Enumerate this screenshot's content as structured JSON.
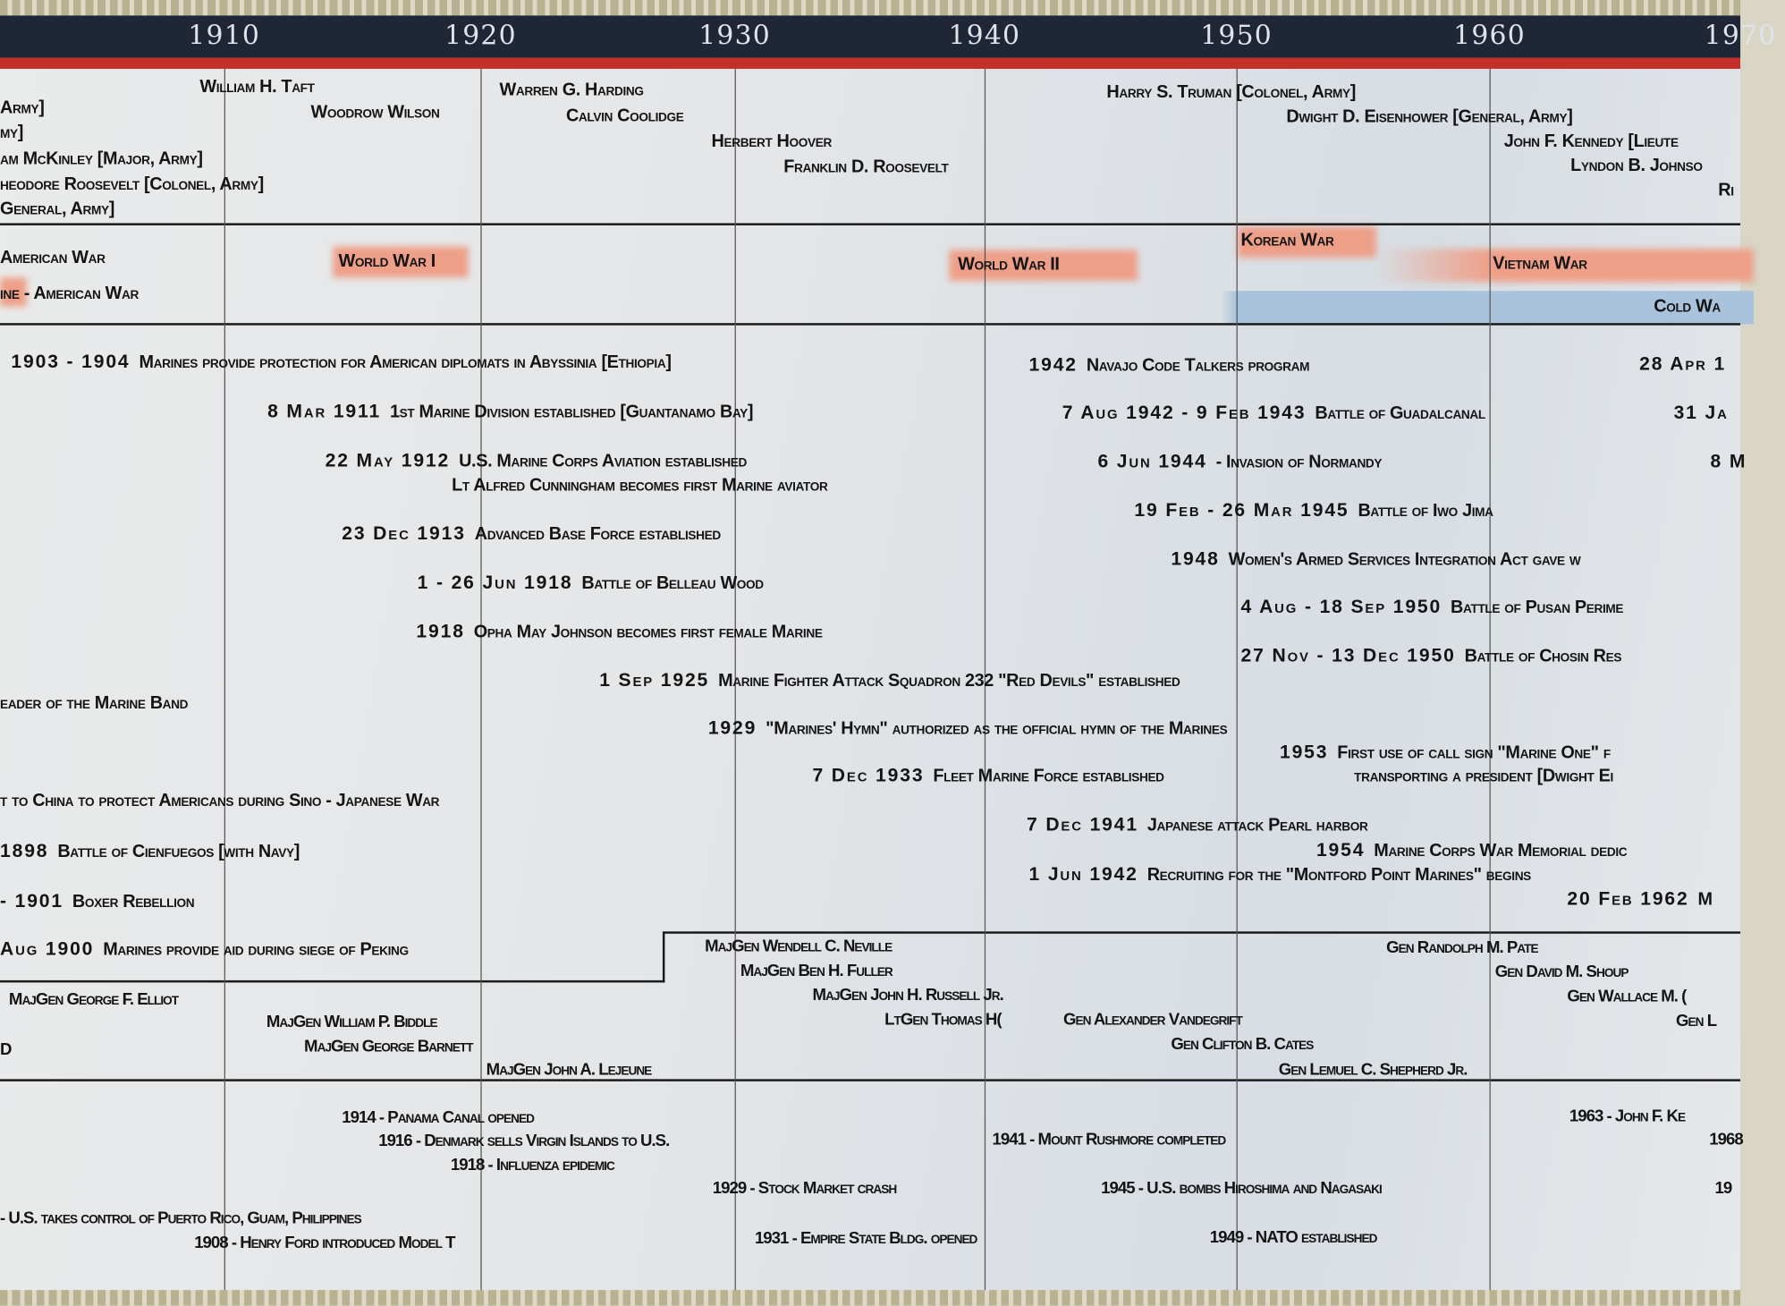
{
  "decades": [
    "1910",
    "1920",
    "1930",
    "1940",
    "1950",
    "1960",
    "1970"
  ],
  "colors": {
    "header": "#1f2636",
    "accent_red": "#c3302a",
    "war_band": "#ee9f88",
    "cold_war_band": "#a9c3dc",
    "star_border": "#b9b290"
  },
  "presidents": [
    "Army]",
    "my]",
    "am McKinley  [Major, Army]",
    "heodore Roosevelt  [Colonel, Army]",
    "General, Army]",
    "William H. Taft",
    "Woodrow Wilson",
    "Warren G. Harding",
    "Calvin Coolidge",
    "Herbert Hoover",
    "Franklin D. Roosevelt",
    "Harry S. Truman  [Colonel, Army]",
    "Dwight D. Eisenhower  [General, Army]",
    "John F. Kennedy  [Lieute",
    "Lyndon B. Johnso",
    "Ri"
  ],
  "wars": [
    "American War",
    "ine - American War",
    "World War I",
    "World War II",
    "Korean War",
    "Vietnam War",
    "Cold Wa"
  ],
  "events": [
    {
      "date": "1903 - 1904",
      "text": "Marines provide protection for American diplomats in Abyssinia [Ethiopia]"
    },
    {
      "date": "8 Mar 1911",
      "text": "1st Marine Division established [Guantanamo Bay]"
    },
    {
      "date": "22 May 1912",
      "text": "U.S. Marine Corps Aviation established"
    },
    {
      "date": "",
      "text": "Lt Alfred Cunningham becomes first Marine aviator"
    },
    {
      "date": "23 Dec 1913",
      "text": "Advanced Base Force established"
    },
    {
      "date": "1 - 26 Jun 1918",
      "text": "Battle of Belleau Wood"
    },
    {
      "date": "1918",
      "text": "Opha May Johnson becomes first female Marine"
    },
    {
      "date": "1 Sep 1925",
      "text": "Marine Fighter Attack Squadron 232 \"Red Devils\" established"
    },
    {
      "date": "",
      "text": "eader of the Marine Band"
    },
    {
      "date": "1929",
      "text": "\"Marines' Hymn\" authorized as the official hymn of the Marines"
    },
    {
      "date": "1953",
      "text": "First use of call sign \"Marine One\" f"
    },
    {
      "date": "",
      "text": "transporting a president  [Dwight Ei"
    },
    {
      "date": "7 Dec 1933",
      "text": "Fleet Marine Force established"
    },
    {
      "date": "",
      "text": "t to China to protect Americans during Sino - Japanese War"
    },
    {
      "date": "7 Dec 1941",
      "text": "Japanese attack Pearl harbor"
    },
    {
      "date": "1954",
      "text": "Marine Corps War Memorial dedic"
    },
    {
      "date": "1898",
      "text": "Battle of Cienfuegos [with Navy]"
    },
    {
      "date": "1 Jun 1942",
      "text": "Recruiting for the \"Montford Point Marines\" begins"
    },
    {
      "date": "20 Feb 1962",
      "text": "M"
    },
    {
      "date": "- 1901",
      "text": "Boxer Rebellion"
    },
    {
      "date": "Aug 1900",
      "text": "Marines provide aid during siege of Peking"
    },
    {
      "date": "1942",
      "text": "Navajo Code Talkers program"
    },
    {
      "date": "7 Aug 1942 - 9 Feb 1943",
      "text": "Battle of Guadalcanal"
    },
    {
      "date": "6 Jun 1944",
      "text": "- Invasion of Normandy"
    },
    {
      "date": "19 Feb - 26 Mar 1945",
      "text": "Battle of Iwo Jima"
    },
    {
      "date": "1948",
      "text": "Women's Armed Services Integration Act gave w"
    },
    {
      "date": "4 Aug - 18 Sep 1950",
      "text": "Battle of Pusan Perime"
    },
    {
      "date": "27 Nov - 13 Dec 1950",
      "text": "Battle of Chosin Res"
    },
    {
      "date": "28 Apr 1",
      "text": ""
    },
    {
      "date": "31 Ja",
      "text": ""
    },
    {
      "date": "8 M",
      "text": ""
    }
  ],
  "commandants": [
    "MajGen George F. Elliot",
    "D",
    "MajGen William P. Biddle",
    "MajGen George Barnett",
    "MajGen John A. Lejeune",
    "MajGen Wendell C. Neville",
    "MajGen Ben H. Fuller",
    "MajGen John H. Russell Jr.",
    "LtGen Thomas H(",
    "Gen Alexander Vandegrift",
    "Gen Clifton B. Cates",
    "Gen Lemuel C. Shepherd Jr.",
    "Gen Randolph M. Pate",
    "Gen David M. Shoup",
    "Gen Wallace M. (",
    "Gen L"
  ],
  "world_events": [
    "1914 - Panama Canal opened",
    "1916 - Denmark sells Virgin Islands to U.S.",
    "1918 - Influenza epidemic",
    "1929 - Stock Market crash",
    "- U.S. takes control of Puerto Rico, Guam, Philippines",
    "1908 - Henry Ford introduced Model T",
    "1931 - Empire State Bldg. opened",
    "1941 - Mount Rushmore completed",
    "1945 - U.S. bombs Hiroshima and Nagasaki",
    "1949 - NATO established",
    "1963 - John F. Ke",
    "1968",
    "19"
  ]
}
